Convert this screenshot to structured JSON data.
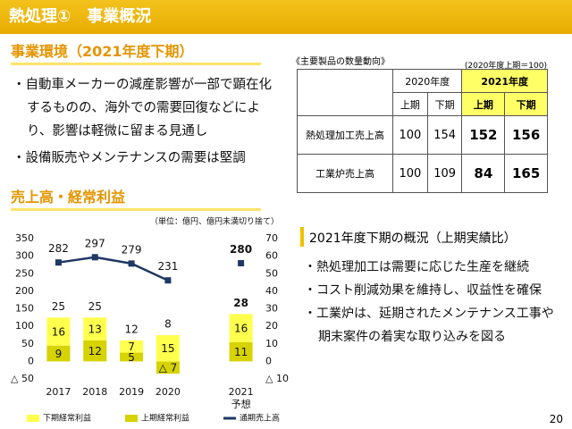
{
  "header": {
    "title": "熱処理①　事業概況"
  },
  "section1": {
    "heading": "事業環境（2021年度下期）",
    "bullets": [
      "・自動車メーカーの減産影響が一部で顕在化するものの、海外での需要回復などにより、影響は軽微に留まる見通し",
      "・設備販売やメンテナンスの需要は堅調"
    ]
  },
  "table": {
    "caption": "《主要製品の数量動向》",
    "note": "(2020年度上期＝100)",
    "years": [
      "2020年度",
      "2021年度"
    ],
    "halves": [
      "上期",
      "下期",
      "上期",
      "下期"
    ],
    "rows": [
      [
        "熱処理加工売上高",
        100,
        154,
        152,
        156
      ],
      [
        "工業炉売上高",
        100,
        109,
        84,
        165
      ]
    ]
  },
  "section2": {
    "heading": "売上高・経常利益"
  },
  "chart_data": {
    "type": "combo",
    "unit_note": "（単位：億円、億円未満切り捨て）",
    "categories": [
      "2017",
      "2018",
      "2019",
      "2020",
      null,
      "2021"
    ],
    "forecast_label": "予想",
    "series": [
      {
        "name": "下期経常利益",
        "type": "bar",
        "color": "#ffff4d",
        "axis": "y2",
        "values": [
          16,
          13,
          7,
          15,
          null,
          16
        ]
      },
      {
        "name": "上期経常利益",
        "type": "bar",
        "color": "#d6d300",
        "axis": "y2",
        "values": [
          9,
          12,
          5,
          -7,
          null,
          11
        ],
        "value_labels": [
          "9",
          "12",
          "5",
          "△ 7",
          null,
          "11"
        ]
      },
      {
        "name": "通期売上高",
        "type": "line",
        "color": "#1f3864",
        "values": [
          282,
          297,
          279,
          231,
          null,
          280
        ]
      }
    ],
    "totals": [
      25,
      25,
      12,
      8,
      null,
      28
    ],
    "ylim": [
      -50,
      350
    ],
    "yticks": [
      {
        "value": -50,
        "label": "△ 50"
      },
      0,
      50,
      100,
      150,
      200,
      250,
      300,
      350
    ],
    "y2lim": [
      -10,
      70
    ],
    "y2ticks": [
      {
        "value": -10,
        "label": "△ 10"
      },
      0,
      10,
      20,
      30,
      40,
      50,
      60,
      70
    ]
  },
  "panel": {
    "title": "2021年度下期の概況（上期実績比）",
    "bullets": [
      "・熱処理加工は需要に応じた生産を継続",
      "・コスト削減効果を維持し、収益性を確保",
      "・工業炉は、延期されたメンテナンス工事や期末案件の着実な取り込みを図る"
    ]
  },
  "page_number": 20
}
